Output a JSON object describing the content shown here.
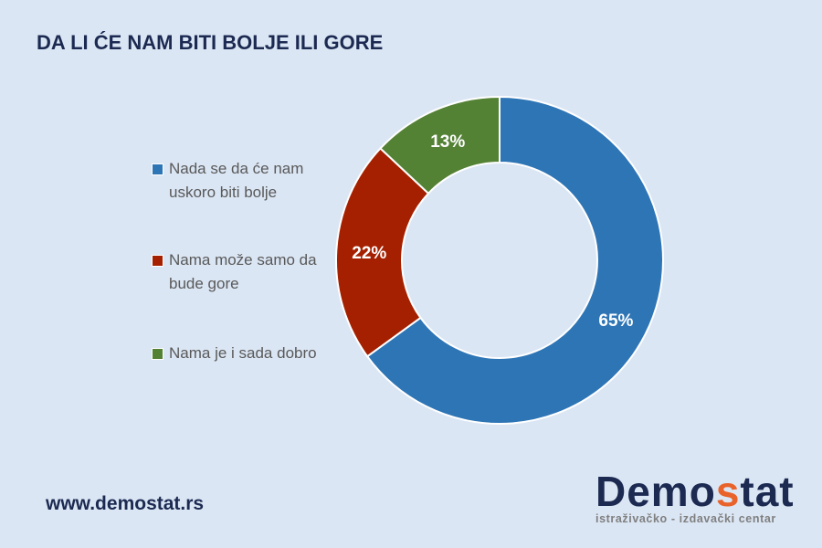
{
  "title": "DA LI ĆE NAM BITI BOLJE ILI GORE",
  "footer": {
    "url": "www.demostat.rs"
  },
  "logo": {
    "text_pre": "Demo",
    "text_accent": "s",
    "text_post": "tat",
    "tagline": "istraživačko - izdavački  centar"
  },
  "chart_data": {
    "type": "pie",
    "donut": true,
    "title": "DA LI ĆE NAM BITI BOLJE ILI GORE",
    "legend_position": "left",
    "series": [
      {
        "name": "Nada se da će nam uskoro biti bolje",
        "value": 65,
        "label": "65%",
        "color": "#2e75b6"
      },
      {
        "name": "Nama može samo da bude gore",
        "value": 22,
        "label": "22%",
        "color": "#a52000"
      },
      {
        "name": "Nama je i sada dobro",
        "value": 13,
        "label": "13%",
        "color": "#548235"
      }
    ]
  }
}
